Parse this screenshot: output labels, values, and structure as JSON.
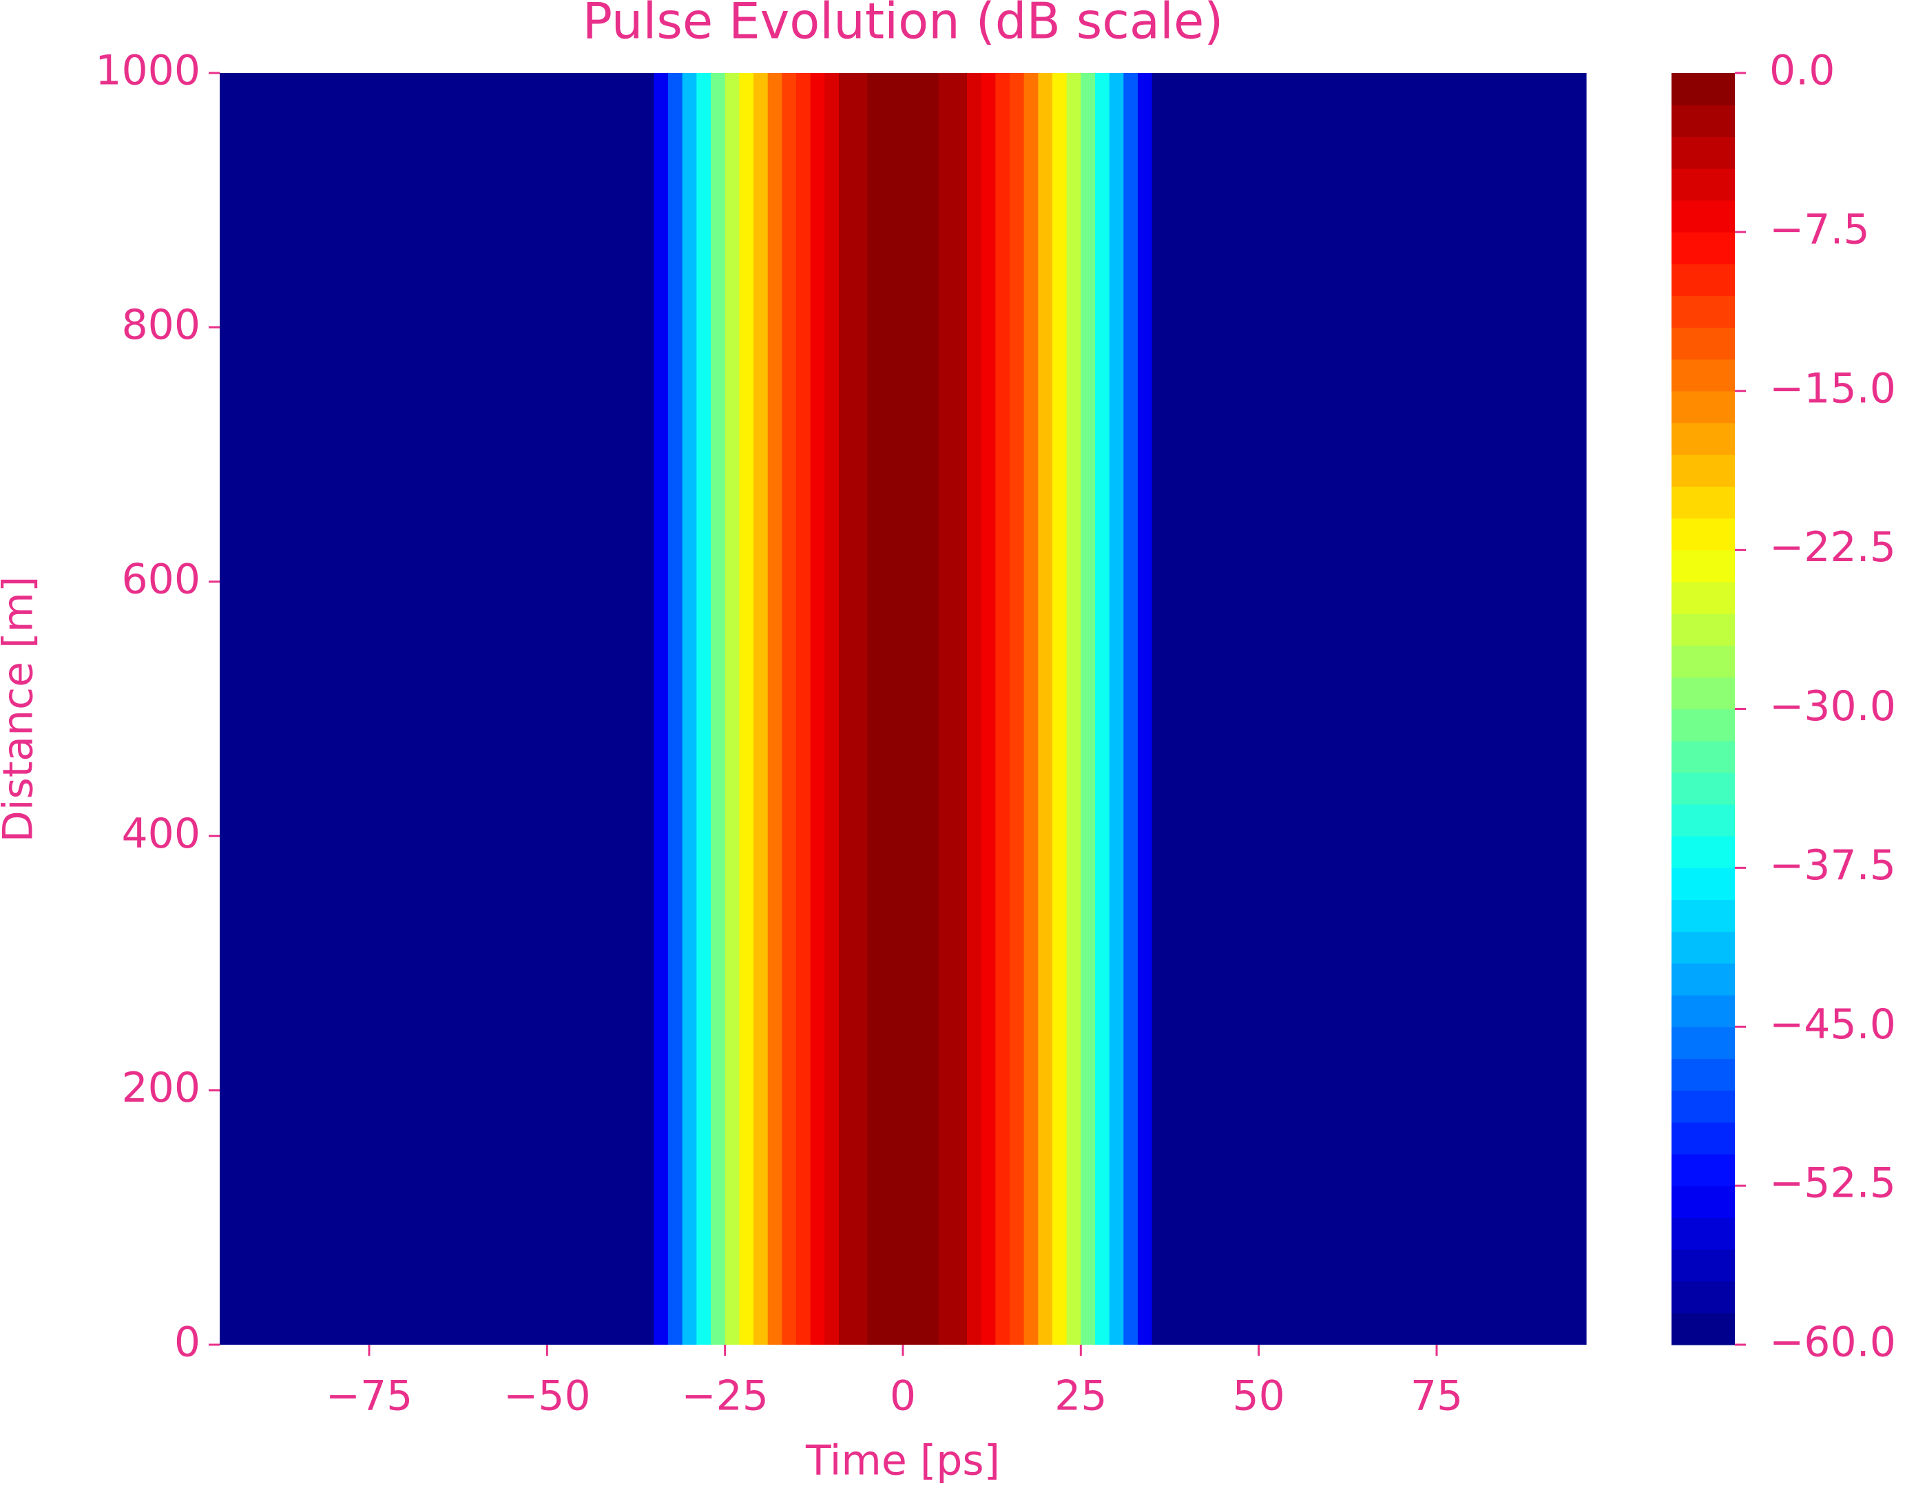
{
  "chart_data": {
    "type": "contourf",
    "title": "Pulse Evolution (dB scale)",
    "x_label": "Time [ps]",
    "y_label": "Distance [m]",
    "colormap": "jet",
    "levels": 40,
    "x": [
      -96,
      -94,
      -92,
      -90,
      -88,
      -86,
      -84,
      -82,
      -80,
      -78,
      -76,
      -74,
      -72,
      -70,
      -68,
      -66,
      -64,
      -62,
      -60,
      -58,
      -56,
      -54,
      -52,
      -50,
      -48,
      -46,
      -44,
      -42,
      -40,
      -38,
      -36,
      -34,
      -32,
      -30,
      -28,
      -26,
      -24,
      -22,
      -20,
      -18,
      -16,
      -14,
      -12,
      -10,
      -8,
      -6,
      -4,
      -2,
      0,
      2,
      4,
      6,
      8,
      10,
      12,
      14,
      16,
      18,
      20,
      22,
      24,
      26,
      28,
      30,
      32,
      34,
      36,
      38,
      40,
      42,
      44,
      46,
      48,
      50,
      52,
      54,
      56,
      58,
      60,
      62,
      64,
      66,
      68,
      70,
      72,
      74,
      76,
      78,
      80,
      82,
      84,
      86,
      88,
      90,
      92,
      94,
      96
    ],
    "values": [
      -60,
      -60,
      -60,
      -60,
      -60,
      -60,
      -60,
      -60,
      -60,
      -60,
      -60,
      -60,
      -60,
      -60,
      -60,
      -60,
      -60,
      -60,
      -60,
      -60,
      -60,
      -60,
      -60,
      -60,
      -60,
      -60,
      -60,
      -60,
      -60,
      -60,
      -60,
      -53.5,
      -47.4,
      -41.7,
      -36.3,
      -31.3,
      -26.7,
      -22.4,
      -18.5,
      -15.0,
      -11.9,
      -9.1,
      -6.7,
      -4.6,
      -3.0,
      -1.7,
      -0.7,
      -0.2,
      0,
      -0.2,
      -0.7,
      -1.7,
      -3.0,
      -4.6,
      -6.7,
      -9.1,
      -11.9,
      -15.0,
      -18.5,
      -22.4,
      -26.7,
      -31.3,
      -36.3,
      -41.7,
      -47.4,
      -53.5,
      -60,
      -60,
      -60,
      -60,
      -60,
      -60,
      -60,
      -60,
      -60,
      -60,
      -60,
      -60,
      -60,
      -60,
      -60,
      -60,
      -60,
      -60,
      -60,
      -60,
      -60,
      -60,
      -60,
      -60,
      -60,
      -60,
      -60,
      -60,
      -60,
      -60,
      -60
    ],
    "xlim": [
      -96,
      96
    ],
    "ylim": [
      0,
      1000
    ],
    "xticks": [
      {
        "value": -75,
        "label": "−75"
      },
      {
        "value": -50,
        "label": "−50"
      },
      {
        "value": -25,
        "label": "−25"
      },
      0,
      25,
      50,
      75
    ],
    "yticks": [
      0,
      200,
      400,
      600,
      800,
      1000
    ],
    "clim": [
      -60,
      0
    ],
    "cticks": [
      {
        "value": 0,
        "label": "0.0"
      },
      {
        "value": -7.5,
        "label": "−7.5"
      },
      {
        "value": -15,
        "label": "−15.0"
      },
      {
        "value": -22.5,
        "label": "−22.5"
      },
      {
        "value": -30,
        "label": "−30.0"
      },
      {
        "value": -37.5,
        "label": "−37.5"
      },
      {
        "value": -45,
        "label": "−45.0"
      },
      {
        "value": -52.5,
        "label": "−52.5"
      },
      {
        "value": -60,
        "label": "−60.0"
      }
    ]
  }
}
